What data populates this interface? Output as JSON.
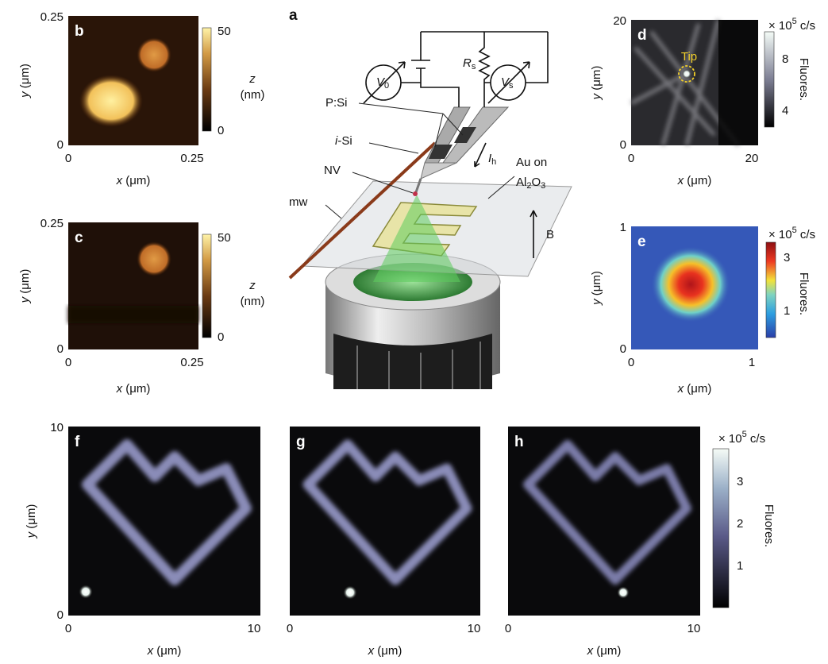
{
  "panels": {
    "a": {
      "label": "a",
      "v0": {
        "main": "V",
        "sub": "0"
      },
      "vs": {
        "main": "V",
        "sub": "s"
      },
      "rs": {
        "main": "R",
        "sub": "s"
      },
      "ih": {
        "main": "I",
        "sub": "h"
      },
      "psi": "P:Si",
      "isi": {
        "italic": "i",
        "rest": "-Si"
      },
      "nv": "NV",
      "mw": "mw",
      "au": {
        "line1": "Au on",
        "al": "Al",
        "sub1": "2",
        "o": "O",
        "sub2": "3"
      },
      "b": "B"
    },
    "b": {
      "label": "b",
      "xticks": [
        0,
        0.25
      ],
      "yticks": [
        0,
        0.25
      ],
      "xlabel": {
        "var": "x",
        "unit": " (μm)"
      },
      "ylabel": {
        "var": "y",
        "unit": " (μm)"
      },
      "colorbar": {
        "ticks": [
          0,
          50
        ],
        "label": {
          "var": "z",
          "unit": "(nm)"
        }
      }
    },
    "c": {
      "label": "c",
      "xticks": [
        0,
        0.25
      ],
      "yticks": [
        0,
        0.25
      ],
      "xlabel": {
        "var": "x",
        "unit": " (μm)"
      },
      "ylabel": {
        "var": "y",
        "unit": " (μm)"
      },
      "colorbar": {
        "ticks": [
          0,
          50
        ],
        "label": {
          "var": "z",
          "unit": "(nm)"
        }
      }
    },
    "d": {
      "label": "d",
      "xticks": [
        0,
        20
      ],
      "yticks": [
        0,
        20
      ],
      "xlabel": {
        "var": "x",
        "unit": " (μm)"
      },
      "ylabel": {
        "var": "y",
        "unit": " (μm)"
      },
      "annotation": "Tip",
      "colorbar": {
        "ticks": [
          4,
          8
        ],
        "unit": {
          "pre": "× 10",
          "sup": "5",
          "post": " c/s"
        },
        "title": "Fluores."
      }
    },
    "e": {
      "label": "e",
      "xticks": [
        0,
        1
      ],
      "yticks": [
        0,
        1
      ],
      "xlabel": {
        "var": "x",
        "unit": " (μm)"
      },
      "ylabel": {
        "var": "y",
        "unit": " (μm)"
      },
      "colorbar": {
        "ticks": [
          1,
          3
        ],
        "unit": {
          "pre": "× 10",
          "sup": "5",
          "post": " c/s"
        },
        "title": "Fluores."
      }
    },
    "f": {
      "label": "f",
      "xticks": [
        0,
        10
      ],
      "yticks": [
        0,
        10
      ],
      "xlabel": {
        "var": "x",
        "unit": " (μm)"
      },
      "ylabel": {
        "var": "y",
        "unit": " (μm)"
      }
    },
    "g": {
      "label": "g",
      "xticks": [
        0,
        10
      ],
      "xlabel": {
        "var": "x",
        "unit": " (μm)"
      }
    },
    "h": {
      "label": "h",
      "xticks": [
        0,
        10
      ],
      "xlabel": {
        "var": "x",
        "unit": " (μm)"
      },
      "colorbar": {
        "ticks": [
          1,
          2,
          3
        ],
        "unit": {
          "pre": "× 10",
          "sup": "5",
          "post": " c/s"
        },
        "title": "Fluores."
      }
    }
  }
}
